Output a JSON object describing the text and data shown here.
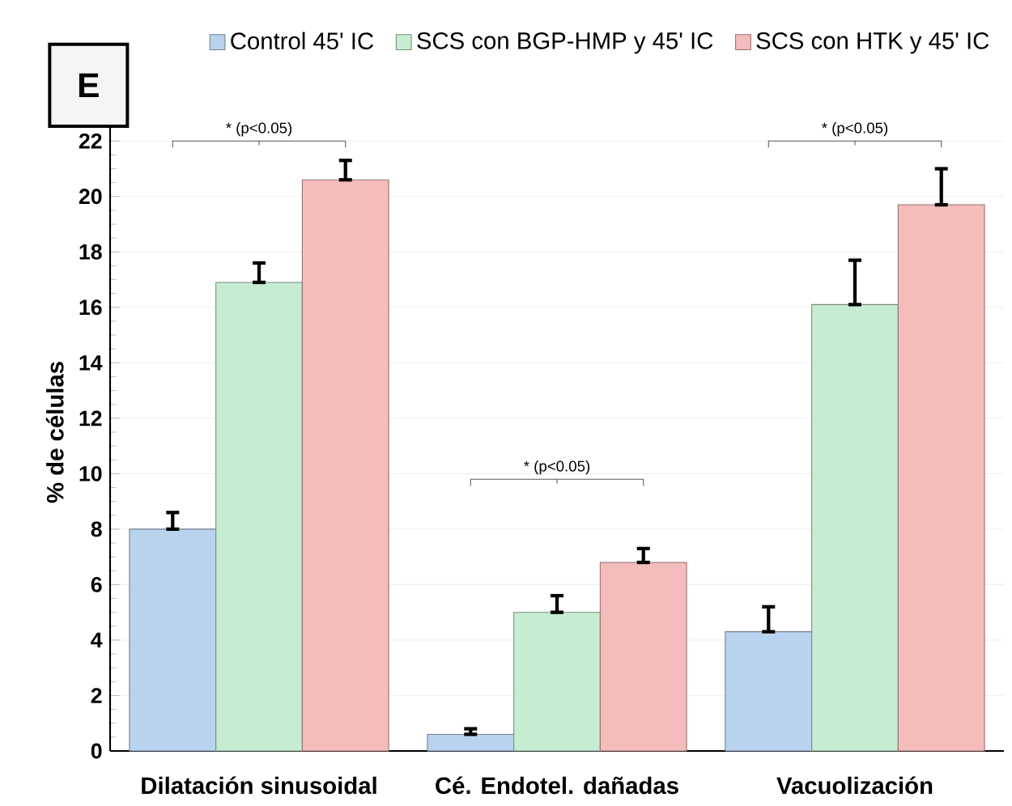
{
  "chart_data": {
    "type": "bar",
    "ylabel": "% de células",
    "categories": [
      "Dilatación sinusoidal",
      "Cé. Endotel. dañadas",
      "Vacuolización"
    ],
    "series": [
      {
        "name": "Control 45' IC",
        "color": "#b9d3ee",
        "values": [
          8.0,
          0.6,
          4.3
        ],
        "errors": [
          [
            8.0,
            8.6
          ],
          [
            0.6,
            0.8
          ],
          [
            4.3,
            5.2
          ]
        ]
      },
      {
        "name": "SCS con BGP-HMP y 45' IC",
        "color": "#c6ecd2",
        "values": [
          16.9,
          5.0,
          16.1
        ],
        "errors": [
          [
            16.9,
            17.6
          ],
          [
            5.0,
            5.6
          ],
          [
            16.1,
            17.7
          ]
        ]
      },
      {
        "name": "SCS con HTK y 45' IC",
        "color": "#f5bcbc",
        "values": [
          20.6,
          6.8,
          19.7
        ],
        "errors": [
          [
            20.6,
            21.3
          ],
          [
            6.8,
            7.3
          ],
          [
            19.7,
            21.0
          ]
        ]
      }
    ],
    "ylim": [
      0,
      23
    ],
    "yticks": [
      0,
      2,
      4,
      6,
      8,
      10,
      12,
      14,
      16,
      18,
      20,
      22
    ],
    "grid": "y",
    "legend": "top",
    "annotations": [
      "E",
      "* (p<0.05)",
      "* (p<0.05)",
      "* (p<0.05)"
    ]
  }
}
